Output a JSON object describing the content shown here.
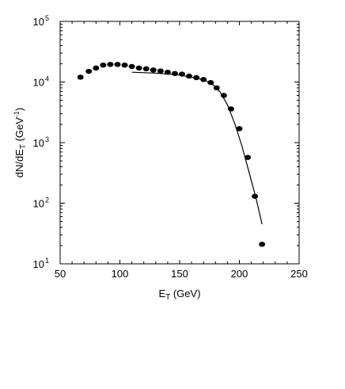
{
  "chart_data": {
    "type": "scatter",
    "title": "",
    "xlabel_main": "E",
    "xlabel_sub": "T",
    "xlabel_rest": " (GeV)",
    "ylabel_main": "dN/dE",
    "ylabel_sub": "T",
    "ylabel_rest": " (GeV",
    "ylabel_sup": "-1",
    "ylabel_close": ")",
    "xlim": [
      50,
      250
    ],
    "ylim": [
      10,
      100000
    ],
    "y_scale": "log",
    "grid": false,
    "x_ticks": [
      "50",
      "100",
      "150",
      "200",
      "250"
    ],
    "x_tick_values": [
      50,
      100,
      150,
      200,
      250
    ],
    "y_ticks": [
      {
        "value": 10,
        "base": "10",
        "exp": "1"
      },
      {
        "value": 100,
        "base": "10",
        "exp": "2"
      },
      {
        "value": 1000,
        "base": "10",
        "exp": "3"
      },
      {
        "value": 10000,
        "base": "10",
        "exp": "4"
      },
      {
        "value": 100000,
        "base": "10",
        "exp": "5"
      }
    ],
    "series": [
      {
        "style": "points",
        "color": "#000000",
        "x": [
          67,
          74,
          80,
          86,
          92,
          98,
          104,
          110,
          116,
          122,
          128,
          134,
          140,
          146,
          152,
          158,
          164,
          170,
          176,
          181,
          187,
          193,
          200,
          207,
          213,
          219
        ],
        "y": [
          12000,
          15000,
          17000,
          19000,
          19500,
          19500,
          19000,
          18000,
          17000,
          16500,
          15800,
          15200,
          14500,
          13800,
          13500,
          12500,
          11800,
          11000,
          9800,
          8000,
          6000,
          3600,
          1700,
          570,
          130,
          21
        ]
      },
      {
        "style": "line",
        "color": "#000000",
        "x": [
          110,
          130,
          150,
          165,
          172,
          178,
          184,
          190,
          196,
          202,
          208,
          214,
          219
        ],
        "y": [
          14500,
          14000,
          13000,
          11500,
          10500,
          9000,
          6800,
          4200,
          2100,
          900,
          330,
          120,
          45
        ]
      }
    ]
  }
}
